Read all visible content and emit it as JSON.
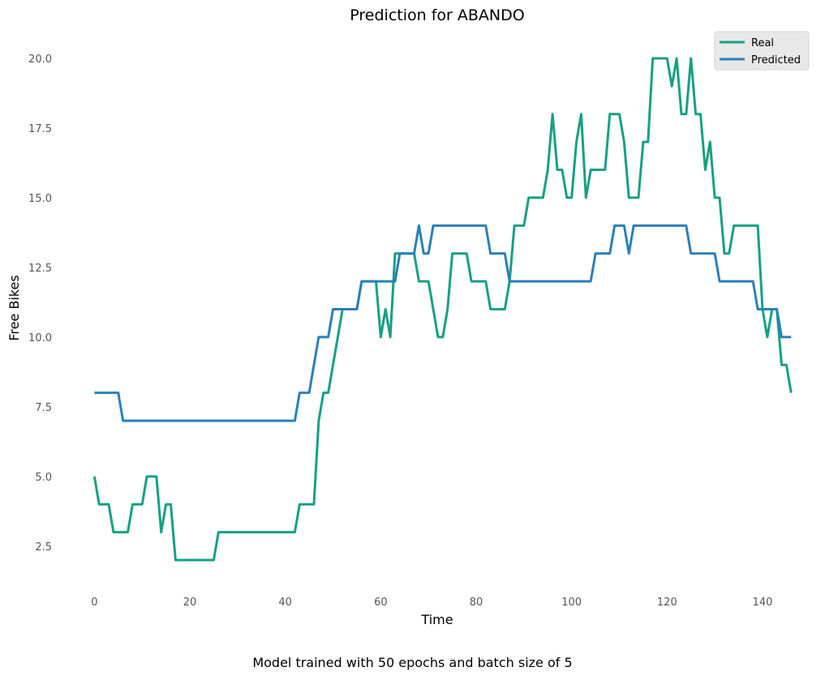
{
  "chart_data": {
    "type": "line",
    "title": "Prediction for ABANDO",
    "xlabel": "Time",
    "ylabel": "Free Bikes",
    "xlim": [
      -7.2,
      150.2
    ],
    "ylim": [
      1.1,
      20.9
    ],
    "xticks": [
      0,
      20,
      40,
      60,
      80,
      100,
      120,
      140
    ],
    "yticks": [
      2.5,
      5.0,
      7.5,
      10.0,
      12.5,
      15.0,
      17.5,
      20.0
    ],
    "ytick_labels": [
      "2.5",
      "5.0",
      "7.5",
      "10.0",
      "12.5",
      "15.0",
      "17.5",
      "20.0"
    ],
    "grid": false,
    "legend_position": "top-right",
    "series": [
      {
        "name": "Real",
        "color": "#16a085",
        "values": [
          5,
          4,
          4,
          4,
          3,
          3,
          3,
          3,
          4,
          4,
          4,
          5,
          5,
          5,
          3,
          4,
          4,
          2,
          2,
          2,
          2,
          2,
          2,
          2,
          2,
          2,
          3,
          3,
          3,
          3,
          3,
          3,
          3,
          3,
          3,
          3,
          3,
          3,
          3,
          3,
          3,
          3,
          3,
          4,
          4,
          4,
          4,
          7,
          8,
          8,
          9,
          10,
          11,
          11,
          11,
          11,
          12,
          12,
          12,
          12,
          10,
          11,
          10,
          13,
          13,
          13,
          13,
          13,
          12,
          12,
          12,
          11,
          10,
          10,
          11,
          13,
          13,
          13,
          13,
          12,
          12,
          12,
          12,
          11,
          11,
          11,
          11,
          12,
          14,
          14,
          14,
          15,
          15,
          15,
          15,
          16,
          18,
          16,
          16,
          15,
          15,
          17,
          18,
          15,
          16,
          16,
          16,
          16,
          18,
          18,
          18,
          17,
          15,
          15,
          15,
          17,
          17,
          20,
          20,
          20,
          20,
          19,
          20,
          18,
          18,
          20,
          18,
          18,
          16,
          17,
          15,
          15,
          13,
          13,
          14,
          14,
          14,
          14,
          14,
          14,
          11,
          10,
          11,
          11,
          9,
          9,
          8
        ]
      },
      {
        "name": "Predicted",
        "color": "#2980b9",
        "values": [
          8,
          8,
          8,
          8,
          8,
          8,
          7,
          7,
          7,
          7,
          7,
          7,
          7,
          7,
          7,
          7,
          7,
          7,
          7,
          7,
          7,
          7,
          7,
          7,
          7,
          7,
          7,
          7,
          7,
          7,
          7,
          7,
          7,
          7,
          7,
          7,
          7,
          7,
          7,
          7,
          7,
          7,
          7,
          8,
          8,
          8,
          9,
          10,
          10,
          10,
          11,
          11,
          11,
          11,
          11,
          11,
          12,
          12,
          12,
          12,
          12,
          12,
          12,
          12,
          13,
          13,
          13,
          13,
          14,
          13,
          13,
          14,
          14,
          14,
          14,
          14,
          14,
          14,
          14,
          14,
          14,
          14,
          14,
          13,
          13,
          13,
          13,
          12,
          12,
          12,
          12,
          12,
          12,
          12,
          12,
          12,
          12,
          12,
          12,
          12,
          12,
          12,
          12,
          12,
          12,
          13,
          13,
          13,
          13,
          14,
          14,
          14,
          13,
          14,
          14,
          14,
          14,
          14,
          14,
          14,
          14,
          14,
          14,
          14,
          14,
          13,
          13,
          13,
          13,
          13,
          13,
          12,
          12,
          12,
          12,
          12,
          12,
          12,
          12,
          11,
          11,
          11,
          11,
          11,
          10,
          10,
          10
        ]
      }
    ]
  },
  "caption": "Model trained with 50 epochs and batch size of 5"
}
